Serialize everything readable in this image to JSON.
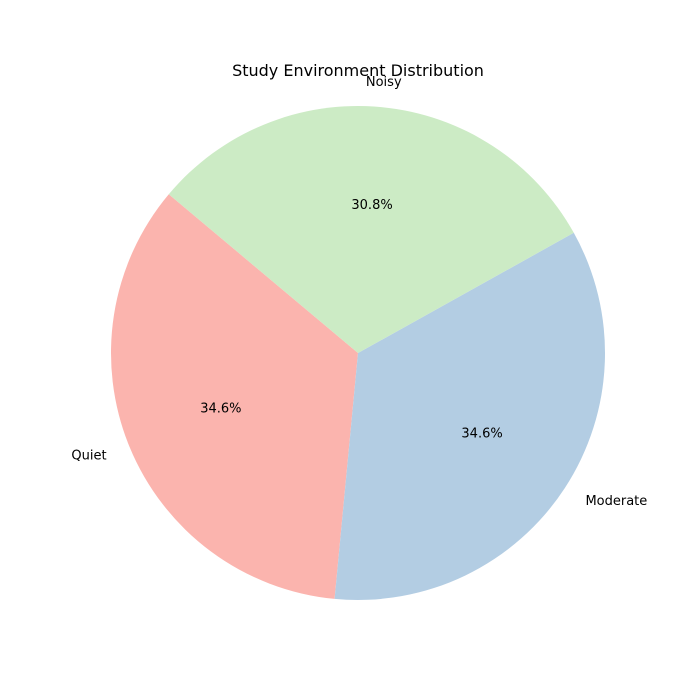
{
  "chart_data": {
    "type": "pie",
    "title": "Study Environment Distribution",
    "labels": [
      "Quiet",
      "Moderate",
      "Noisy"
    ],
    "values": [
      34.6,
      34.6,
      30.8
    ],
    "percent_labels": [
      "34.6%",
      "34.6%",
      "30.8%"
    ],
    "colors": [
      "#fbb4ae",
      "#b3cde3",
      "#ccebc5"
    ],
    "start_angle_deg": 140,
    "direction": "counterclockwise",
    "legend": "none"
  }
}
